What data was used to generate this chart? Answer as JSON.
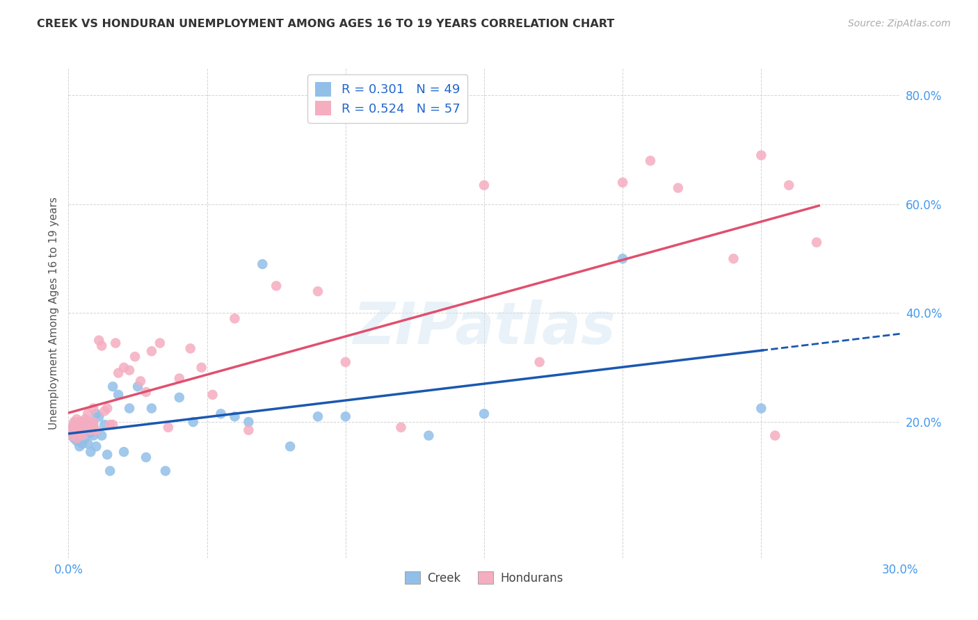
{
  "title": "CREEK VS HONDURAN UNEMPLOYMENT AMONG AGES 16 TO 19 YEARS CORRELATION CHART",
  "source": "Source: ZipAtlas.com",
  "ylabel": "Unemployment Among Ages 16 to 19 years",
  "xlim": [
    0.0,
    0.3
  ],
  "ylim": [
    -0.05,
    0.85
  ],
  "creek_color": "#92bfe8",
  "honduran_color": "#f5adc0",
  "creek_line_color": "#1a58b0",
  "honduran_line_color": "#e0506e",
  "creek_R": 0.301,
  "creek_N": 49,
  "honduran_R": 0.524,
  "honduran_N": 57,
  "background_color": "#ffffff",
  "grid_color": "#c8c8c8",
  "watermark": "ZIPatlas",
  "creek_x": [
    0.001,
    0.001,
    0.002,
    0.002,
    0.003,
    0.003,
    0.003,
    0.004,
    0.004,
    0.004,
    0.005,
    0.005,
    0.005,
    0.006,
    0.006,
    0.007,
    0.007,
    0.008,
    0.008,
    0.009,
    0.009,
    0.01,
    0.01,
    0.011,
    0.012,
    0.013,
    0.014,
    0.015,
    0.016,
    0.018,
    0.02,
    0.022,
    0.025,
    0.028,
    0.03,
    0.035,
    0.04,
    0.045,
    0.055,
    0.06,
    0.065,
    0.07,
    0.08,
    0.09,
    0.1,
    0.13,
    0.15,
    0.2,
    0.25
  ],
  "creek_y": [
    0.185,
    0.175,
    0.195,
    0.17,
    0.195,
    0.18,
    0.165,
    0.19,
    0.17,
    0.155,
    0.195,
    0.18,
    0.16,
    0.19,
    0.17,
    0.195,
    0.16,
    0.18,
    0.145,
    0.195,
    0.175,
    0.215,
    0.155,
    0.21,
    0.175,
    0.195,
    0.14,
    0.11,
    0.265,
    0.25,
    0.145,
    0.225,
    0.265,
    0.135,
    0.225,
    0.11,
    0.245,
    0.2,
    0.215,
    0.21,
    0.2,
    0.49,
    0.155,
    0.21,
    0.21,
    0.175,
    0.215,
    0.5,
    0.225
  ],
  "honduran_x": [
    0.001,
    0.001,
    0.002,
    0.002,
    0.003,
    0.003,
    0.003,
    0.004,
    0.004,
    0.005,
    0.005,
    0.005,
    0.006,
    0.006,
    0.007,
    0.007,
    0.008,
    0.008,
    0.009,
    0.009,
    0.01,
    0.011,
    0.012,
    0.013,
    0.014,
    0.015,
    0.016,
    0.017,
    0.018,
    0.02,
    0.022,
    0.024,
    0.026,
    0.028,
    0.03,
    0.033,
    0.036,
    0.04,
    0.044,
    0.048,
    0.052,
    0.06,
    0.065,
    0.075,
    0.09,
    0.1,
    0.12,
    0.15,
    0.17,
    0.2,
    0.21,
    0.22,
    0.24,
    0.25,
    0.255,
    0.26,
    0.27
  ],
  "honduran_y": [
    0.19,
    0.175,
    0.2,
    0.185,
    0.205,
    0.185,
    0.17,
    0.2,
    0.18,
    0.2,
    0.185,
    0.175,
    0.205,
    0.19,
    0.215,
    0.195,
    0.2,
    0.185,
    0.225,
    0.2,
    0.185,
    0.35,
    0.34,
    0.22,
    0.225,
    0.195,
    0.195,
    0.345,
    0.29,
    0.3,
    0.295,
    0.32,
    0.275,
    0.255,
    0.33,
    0.345,
    0.19,
    0.28,
    0.335,
    0.3,
    0.25,
    0.39,
    0.185,
    0.45,
    0.44,
    0.31,
    0.19,
    0.635,
    0.31,
    0.64,
    0.68,
    0.63,
    0.5,
    0.69,
    0.175,
    0.635,
    0.53
  ]
}
